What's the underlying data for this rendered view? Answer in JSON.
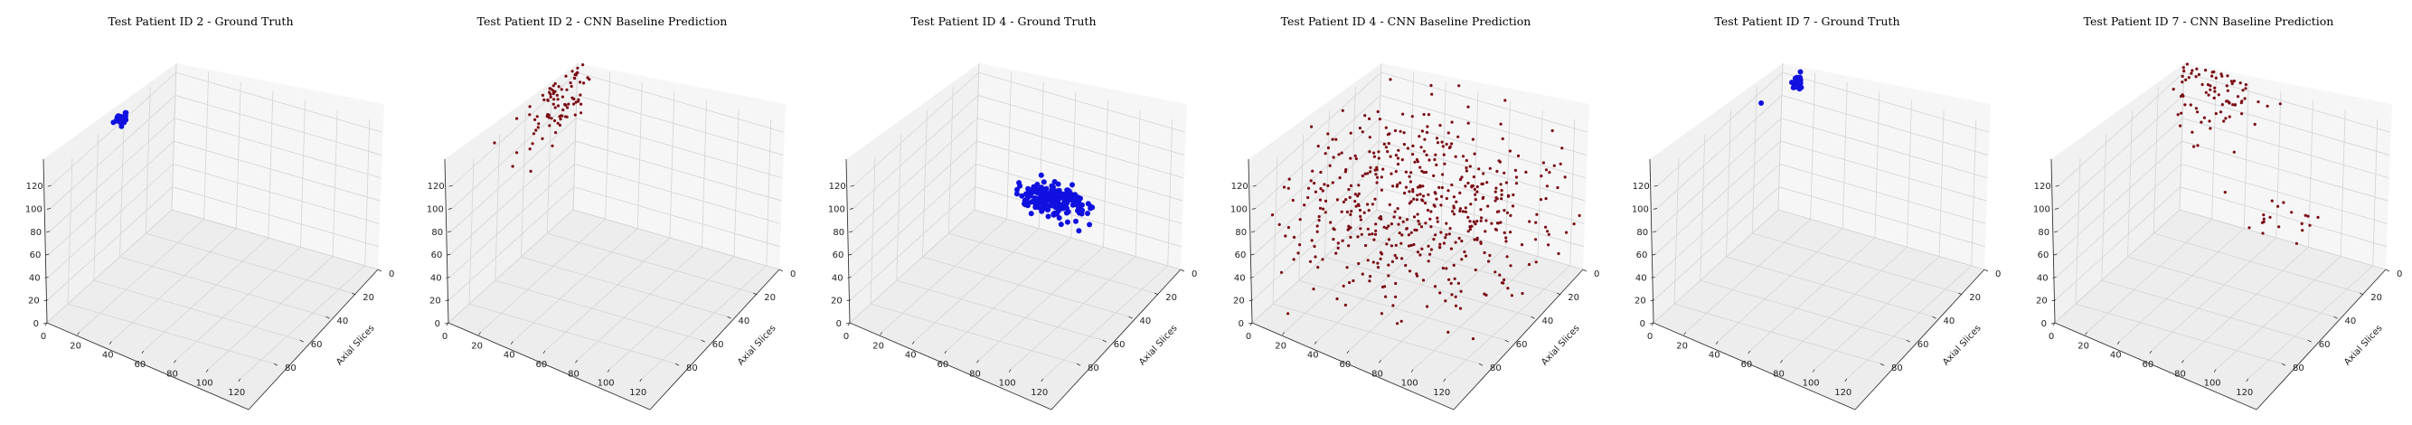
{
  "chart_data": [
    {
      "type": "scatter",
      "projection": "3d",
      "title": "Test Patient ID 2 - Ground Truth",
      "ylabel": "Axial Slices",
      "xlim": [
        0,
        128
      ],
      "ylim": [
        0,
        96
      ],
      "zlim": [
        0,
        128
      ],
      "x_ticks": [
        "0",
        "20",
        "40",
        "60",
        "80",
        "100",
        "120"
      ],
      "y_ticks": [
        "0",
        "20",
        "40",
        "60",
        "80"
      ],
      "z_ticks": [
        "0",
        "20",
        "40",
        "60",
        "80",
        "100",
        "120"
      ],
      "grid": true,
      "color": "#1010e0",
      "marker_size": 3,
      "clusters": [
        {
          "center": [
            2,
            45,
            128
          ],
          "spread": [
            1.5,
            2,
            3
          ],
          "count": 38
        }
      ],
      "points": []
    },
    {
      "type": "scatter",
      "projection": "3d",
      "title": "Test Patient ID 2 - CNN Baseline Prediction",
      "ylabel": "Axial Slices",
      "xlim": [
        0,
        128
      ],
      "ylim": [
        0,
        96
      ],
      "zlim": [
        0,
        128
      ],
      "x_ticks": [
        "0",
        "20",
        "40",
        "60",
        "80",
        "100",
        "120"
      ],
      "y_ticks": [
        "0",
        "20",
        "40",
        "60",
        "80"
      ],
      "z_ticks": [
        "0",
        "20",
        "40",
        "60",
        "80",
        "100",
        "120"
      ],
      "grid": true,
      "color": "#7a0a14",
      "marker_size": 1.6,
      "clusters": [
        {
          "center": [
            3,
            20,
            118
          ],
          "spread": [
            4,
            14,
            18
          ],
          "count": 90
        }
      ],
      "points": []
    },
    {
      "type": "scatter",
      "projection": "3d",
      "title": "Test Patient ID 4 - Ground Truth",
      "ylabel": "Axial Slices",
      "xlim": [
        0,
        128
      ],
      "ylim": [
        0,
        96
      ],
      "zlim": [
        0,
        128
      ],
      "x_ticks": [
        "0",
        "20",
        "40",
        "60",
        "80",
        "100",
        "120"
      ],
      "y_ticks": [
        "0",
        "20",
        "40",
        "60",
        "80"
      ],
      "z_ticks": [
        "0",
        "20",
        "40",
        "60",
        "80",
        "100",
        "120"
      ],
      "grid": true,
      "color": "#1010e0",
      "marker_size": 3,
      "clusters": [
        {
          "center": [
            75,
            35,
            75
          ],
          "spread": [
            10,
            5,
            3
          ],
          "count": 220
        }
      ],
      "points": []
    },
    {
      "type": "scatter",
      "projection": "3d",
      "title": "Test Patient ID 4 - CNN Baseline Prediction",
      "ylabel": "Axial Slices",
      "xlim": [
        0,
        128
      ],
      "ylim": [
        0,
        96
      ],
      "zlim": [
        0,
        128
      ],
      "x_ticks": [
        "0",
        "20",
        "40",
        "60",
        "80",
        "100",
        "120"
      ],
      "y_ticks": [
        "0",
        "20",
        "40",
        "60",
        "80"
      ],
      "z_ticks": [
        "0",
        "20",
        "40",
        "60",
        "80",
        "100",
        "120"
      ],
      "grid": true,
      "color": "#7a0a14",
      "marker_size": 1.6,
      "clusters": [
        {
          "center": [
            64,
            48,
            80
          ],
          "spread": [
            38,
            28,
            28
          ],
          "count": 520
        }
      ],
      "points": []
    },
    {
      "type": "scatter",
      "projection": "3d",
      "title": "Test Patient ID 7 - Ground Truth",
      "ylabel": "Axial Slices",
      "xlim": [
        0,
        128
      ],
      "ylim": [
        0,
        96
      ],
      "zlim": [
        0,
        128
      ],
      "x_ticks": [
        "0",
        "20",
        "40",
        "60",
        "80",
        "100",
        "120"
      ],
      "y_ticks": [
        "0",
        "20",
        "40",
        "60",
        "80"
      ],
      "z_ticks": [
        "0",
        "20",
        "40",
        "60",
        "80",
        "100",
        "120"
      ],
      "grid": true,
      "color": "#1010e0",
      "marker_size": 3,
      "clusters": [
        {
          "center": [
            10,
            0,
            115
          ],
          "spread": [
            1.2,
            1.2,
            2
          ],
          "count": 40
        }
      ],
      "points": [
        [
          3,
          20,
          115
        ],
        [
          11,
          0,
          125
        ]
      ]
    },
    {
      "type": "scatter",
      "projection": "3d",
      "title": "Test Patient ID 7 - CNN Baseline Prediction",
      "ylabel": "Axial Slices",
      "xlim": [
        0,
        128
      ],
      "ylim": [
        0,
        96
      ],
      "zlim": [
        0,
        128
      ],
      "x_ticks": [
        "0",
        "20",
        "40",
        "60",
        "80",
        "100",
        "120"
      ],
      "y_ticks": [
        "0",
        "20",
        "40",
        "60",
        "80"
      ],
      "z_ticks": [
        "0",
        "20",
        "40",
        "60",
        "80",
        "100",
        "120"
      ],
      "grid": true,
      "color": "#7a0a14",
      "marker_size": 1.6,
      "clusters": [
        {
          "center": [
            20,
            0,
            110
          ],
          "spread": [
            14,
            5,
            18
          ],
          "count": 80
        },
        {
          "center": [
            75,
            10,
            30
          ],
          "spread": [
            14,
            5,
            8
          ],
          "count": 20
        }
      ],
      "points": []
    }
  ]
}
